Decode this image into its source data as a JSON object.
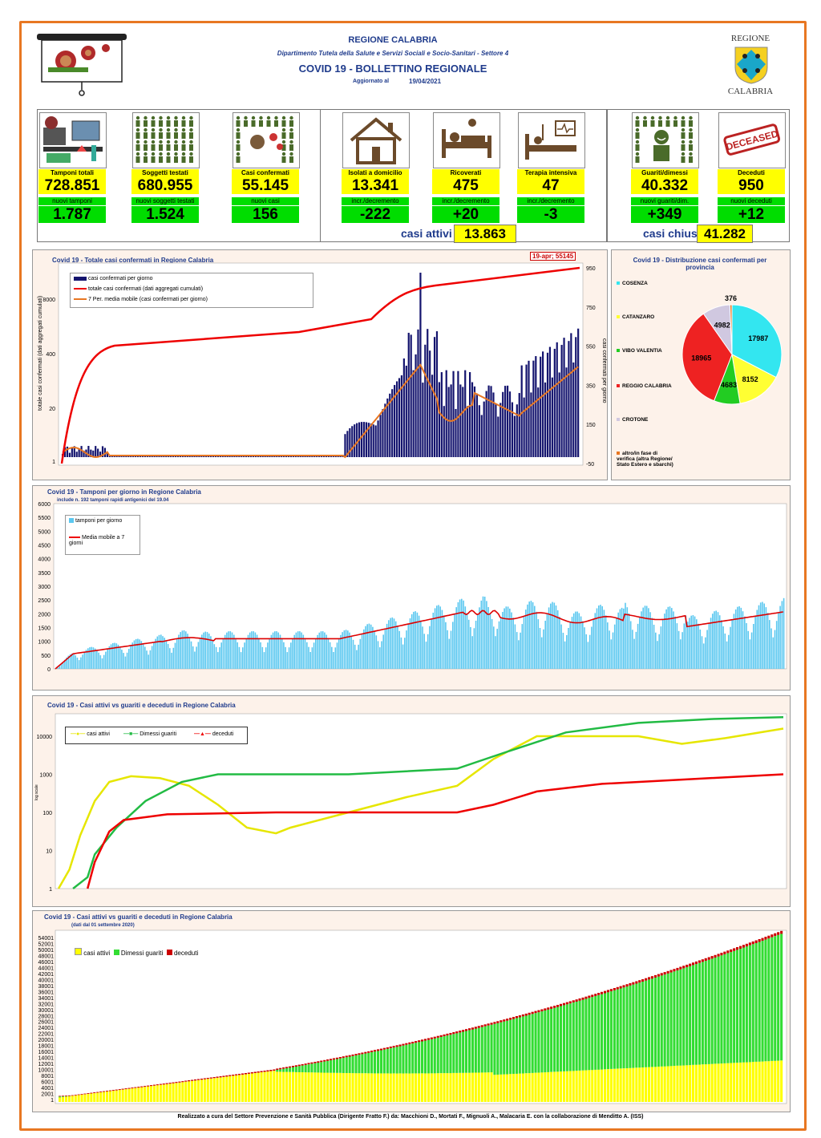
{
  "header": {
    "region": "REGIONE CALABRIA",
    "department": "Dipartimento Tutela della Salute e Servizi Sociali e Socio-Sanitari - Settore 4",
    "title": "COVID 19 - BOLLETTINO REGIONALE",
    "updated_label": "Aggiornato al",
    "updated_date": "19/04/2021",
    "logo_top": "REGIONE",
    "logo_bottom": "CALABRIA"
  },
  "cards": [
    {
      "label": "Tamponi totali",
      "value": "728.851",
      "sub": "nuovi tamponi",
      "delta": "1.787"
    },
    {
      "label": "Soggetti testati",
      "value": "680.955",
      "sub": "nuovi soggetti testati",
      "delta": "1.524"
    },
    {
      "label": "Casi confermati",
      "value": "55.145",
      "sub": "nuovi casi",
      "delta": "156"
    },
    {
      "label": "Isolati a domicilio",
      "value": "13.341",
      "sub": "incr./decremento",
      "delta": "-222"
    },
    {
      "label": "Ricoverati",
      "value": "475",
      "sub": "incr./decremento",
      "delta": "+20"
    },
    {
      "label": "Terapia intensiva",
      "value": "47",
      "sub": "incr./decremento",
      "delta": "-3"
    },
    {
      "label": "Guariti/dimessi",
      "value": "40.332",
      "sub": "nuovi guariti/dim.",
      "delta": "+349"
    },
    {
      "label": "Deceduti",
      "value": "950",
      "sub": "nuovi deceduti",
      "delta": "+12"
    }
  ],
  "totals": {
    "active_label": "casi attivi",
    "active_value": "13.863",
    "closed_label": "casi chiusi",
    "closed_value": "41.282",
    "deceased_stamp": "DECEASED"
  },
  "chart1": {
    "title": "Covid 19 - Totale casi confermati in Regione Calabria",
    "callout": "19-apr; 55145",
    "legend": [
      "casi confermati per giorno",
      "totale casi confermati (dati aggregati cumulati)",
      "7 Per. media mobile (casi confermati per giorno)"
    ],
    "ylabel_left": "totale casi confermati (dati aggregati cumulati)",
    "ylabel_right": "casi confermati per giorno",
    "yticks_left": [
      "8000",
      "400",
      "20",
      "1"
    ],
    "yticks_right": [
      "950",
      "750",
      "550",
      "350",
      "150",
      "-50"
    ]
  },
  "chart2": {
    "title": "Covid 19 - Distribuzione casi confermati per provincia",
    "provinces": [
      "COSENZA",
      "CATANZARO",
      "VIBO VALENTIA",
      "REGGIO CALABRIA",
      "CROTONE",
      "altro/in fase di verifica (altra Regione/ Stato Estero e sbarchi)"
    ],
    "values": [
      "17987",
      "8152",
      "4683",
      "18965",
      "4982",
      "376"
    ]
  },
  "chart3": {
    "title": "Covid 19 - Tamponi per giorno in Regione Calabria",
    "note": "include n. 192 tamponi rapidi antigenici del 19.04",
    "legend": [
      "tamponi per giorno",
      "Media mobile a 7 giorni"
    ],
    "yticks": [
      "6000",
      "5500",
      "5000",
      "4500",
      "4000",
      "3500",
      "3000",
      "2500",
      "2000",
      "1500",
      "1000",
      "500",
      "0"
    ]
  },
  "chart4": {
    "title": "Covid 19 - Casi attivi vs guariti e deceduti in Regione Calabria",
    "legend": [
      "casi attivi",
      "Dimessi guariti",
      "deceduti"
    ],
    "ylabel": "log scale",
    "yticks": [
      "10000",
      "1000",
      "100",
      "10",
      "1"
    ]
  },
  "chart5": {
    "title": "Covid 19 - Casi attivi vs guariti e deceduti in Regione Calabria",
    "subtitle": "(dati dal 01 settembre 2020)",
    "legend": [
      "casi attivi",
      "Dimessi guariti",
      "deceduti"
    ],
    "yticks": [
      "54001",
      "52001",
      "50001",
      "48001",
      "46001",
      "44001",
      "42001",
      "40001",
      "38001",
      "36001",
      "34001",
      "32001",
      "30001",
      "28001",
      "26001",
      "24001",
      "22001",
      "20001",
      "18001",
      "16001",
      "14001",
      "12001",
      "10001",
      "8001",
      "6001",
      "4001",
      "2001",
      "1"
    ]
  },
  "footer": "Realizzato a cura del Settore Prevenzione e Sanità Pubblica (Dirigente Fratto F.) da: Macchioni D., Mortati F., Mignuoli A., Malacaria E. con la collaborazione di Menditto A. (ISS)",
  "colors": {
    "accent": "#e87722",
    "blue": "#1f3b8c",
    "yellow": "#ffff00",
    "green": "#00dd00",
    "red": "#e00000"
  },
  "chart_data": [
    {
      "type": "pie",
      "title": "Covid 19 - Distribuzione casi confermati per provincia",
      "categories": [
        "COSENZA",
        "CATANZARO",
        "VIBO VALENTIA",
        "REGGIO CALABRIA",
        "CROTONE",
        "altro/in fase di verifica (altra Regione/ Stato Estero e sbarchi)"
      ],
      "values": [
        17987,
        8152,
        4683,
        18965,
        4982,
        376
      ],
      "colors": [
        "#33e6f0",
        "#ffff33",
        "#22cc22",
        "#ee2222",
        "#d0c8e0",
        "#e87722"
      ]
    }
  ]
}
